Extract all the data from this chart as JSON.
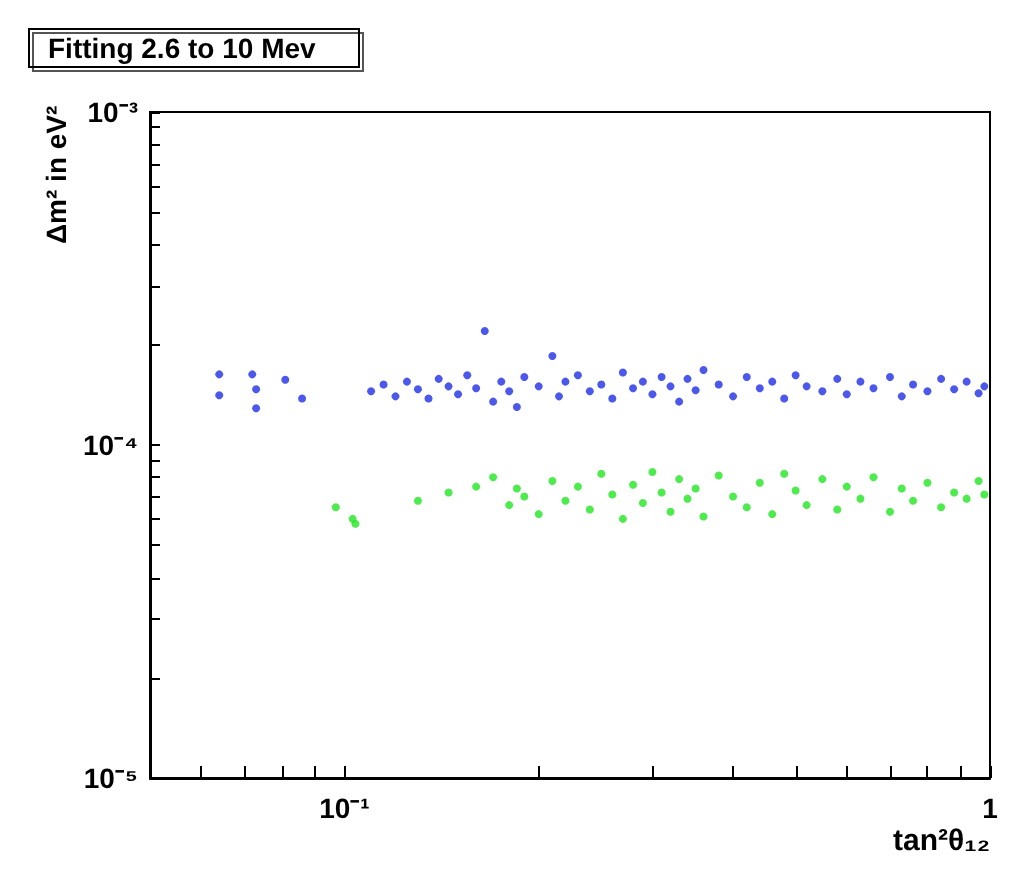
{
  "chart_data": {
    "type": "scatter",
    "title": "Fitting 2.6 to 10 Mev",
    "xlabel": "tan²θ₁₂",
    "ylabel": "Δm² in eV²",
    "log": "xy",
    "grid": false,
    "marker": "circle",
    "xlim": [
      0.05,
      1
    ],
    "ylim": [
      1e-05,
      0.001
    ],
    "xticks": [
      {
        "value": 0.06,
        "label": null
      },
      {
        "value": 0.07,
        "label": null
      },
      {
        "value": 0.08,
        "label": null
      },
      {
        "value": 0.09,
        "label": null
      },
      {
        "value": 0.1,
        "label": "10⁻¹"
      },
      {
        "value": 0.2,
        "label": null
      },
      {
        "value": 0.3,
        "label": null
      },
      {
        "value": 0.4,
        "label": null
      },
      {
        "value": 0.5,
        "label": null
      },
      {
        "value": 0.6,
        "label": null
      },
      {
        "value": 0.7,
        "label": null
      },
      {
        "value": 0.8,
        "label": null
      },
      {
        "value": 0.9,
        "label": null
      },
      {
        "value": 1,
        "label": "1"
      }
    ],
    "yticks": [
      {
        "value": 1e-05,
        "label": "10⁻⁵"
      },
      {
        "value": 2e-05,
        "label": null
      },
      {
        "value": 3e-05,
        "label": null
      },
      {
        "value": 4e-05,
        "label": null
      },
      {
        "value": 5e-05,
        "label": null
      },
      {
        "value": 6e-05,
        "label": null
      },
      {
        "value": 7e-05,
        "label": null
      },
      {
        "value": 8e-05,
        "label": null
      },
      {
        "value": 9e-05,
        "label": null
      },
      {
        "value": 0.0001,
        "label": "10⁻⁴"
      },
      {
        "value": 0.0002,
        "label": null
      },
      {
        "value": 0.0003,
        "label": null
      },
      {
        "value": 0.0004,
        "label": null
      },
      {
        "value": 0.0005,
        "label": null
      },
      {
        "value": 0.0006,
        "label": null
      },
      {
        "value": 0.0007,
        "label": null
      },
      {
        "value": 0.0008,
        "label": null
      },
      {
        "value": 0.0009,
        "label": null
      },
      {
        "value": 0.001,
        "label": "10⁻³"
      }
    ],
    "series": [
      {
        "color": "#1e2ee6",
        "x": [
          0.064,
          0.064,
          0.072,
          0.073,
          0.073,
          0.081,
          0.086,
          0.11,
          0.115,
          0.12,
          0.125,
          0.13,
          0.135,
          0.14,
          0.145,
          0.15,
          0.155,
          0.16,
          0.165,
          0.17,
          0.175,
          0.18,
          0.185,
          0.19,
          0.2,
          0.21,
          0.215,
          0.22,
          0.23,
          0.24,
          0.25,
          0.26,
          0.27,
          0.28,
          0.29,
          0.3,
          0.31,
          0.32,
          0.33,
          0.34,
          0.35,
          0.36,
          0.38,
          0.4,
          0.42,
          0.44,
          0.46,
          0.48,
          0.5,
          0.52,
          0.55,
          0.58,
          0.6,
          0.63,
          0.66,
          0.7,
          0.73,
          0.76,
          0.8,
          0.84,
          0.88,
          0.92,
          0.96,
          0.98
        ],
        "values": [
          0.000163,
          0.000141,
          0.000163,
          0.000147,
          0.000129,
          0.000157,
          0.000138,
          0.000145,
          0.000152,
          0.00014,
          0.000155,
          0.000147,
          0.000138,
          0.000158,
          0.00015,
          0.000142,
          0.000162,
          0.000148,
          0.00022,
          0.000135,
          0.000155,
          0.000145,
          0.00013,
          0.00016,
          0.00015,
          0.000185,
          0.00014,
          0.000155,
          0.000162,
          0.000145,
          0.000152,
          0.000138,
          0.000165,
          0.000148,
          0.000155,
          0.000142,
          0.00016,
          0.00015,
          0.000135,
          0.000158,
          0.000146,
          0.000168,
          0.000152,
          0.00014,
          0.00016,
          0.000148,
          0.000155,
          0.000138,
          0.000162,
          0.00015,
          0.000145,
          0.000158,
          0.000142,
          0.000155,
          0.000148,
          0.00016,
          0.00014,
          0.000152,
          0.000145,
          0.000158,
          0.000147,
          0.000155,
          0.000143,
          0.00015
        ]
      },
      {
        "color": "#22e622",
        "x": [
          0.097,
          0.103,
          0.104,
          0.13,
          0.145,
          0.16,
          0.17,
          0.18,
          0.185,
          0.19,
          0.2,
          0.21,
          0.22,
          0.23,
          0.24,
          0.25,
          0.26,
          0.27,
          0.28,
          0.29,
          0.3,
          0.31,
          0.32,
          0.33,
          0.34,
          0.35,
          0.36,
          0.38,
          0.4,
          0.42,
          0.44,
          0.46,
          0.48,
          0.5,
          0.52,
          0.55,
          0.58,
          0.6,
          0.63,
          0.66,
          0.7,
          0.73,
          0.76,
          0.8,
          0.84,
          0.88,
          0.92,
          0.96,
          0.98
        ],
        "values": [
          6.5e-05,
          6e-05,
          5.8e-05,
          6.8e-05,
          7.2e-05,
          7.5e-05,
          8e-05,
          6.6e-05,
          7.4e-05,
          7e-05,
          6.2e-05,
          7.8e-05,
          6.8e-05,
          7.5e-05,
          6.4e-05,
          8.2e-05,
          7.1e-05,
          6e-05,
          7.6e-05,
          6.7e-05,
          8.3e-05,
          7.2e-05,
          6.3e-05,
          7.9e-05,
          6.9e-05,
          7.4e-05,
          6.1e-05,
          8.1e-05,
          7e-05,
          6.5e-05,
          7.7e-05,
          6.2e-05,
          8.2e-05,
          7.3e-05,
          6.6e-05,
          7.9e-05,
          6.4e-05,
          7.5e-05,
          6.9e-05,
          8e-05,
          6.3e-05,
          7.4e-05,
          6.8e-05,
          7.7e-05,
          6.5e-05,
          7.2e-05,
          6.9e-05,
          7.8e-05,
          7.1e-05
        ]
      }
    ]
  }
}
